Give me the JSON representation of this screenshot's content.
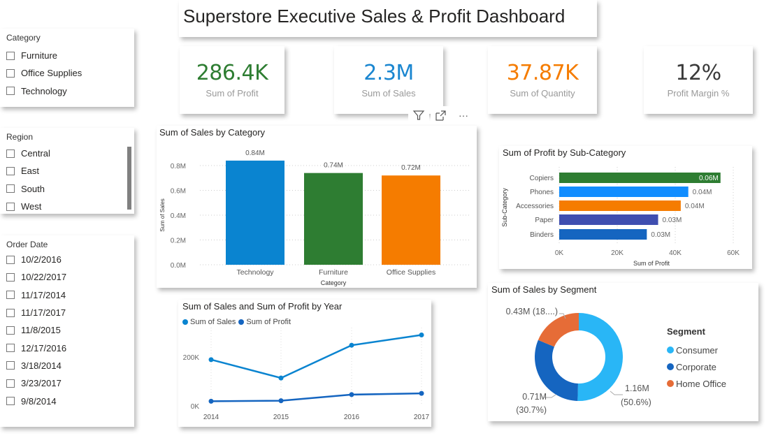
{
  "title": "Superstore Executive Sales & Profit Dashboard",
  "slicers": {
    "category": {
      "title": "Category",
      "items": [
        "Furniture",
        "Office Supplies",
        "Technology"
      ]
    },
    "region": {
      "title": "Region",
      "items": [
        "Central",
        "East",
        "South",
        "West"
      ]
    },
    "order_date": {
      "title": "Order Date",
      "items": [
        "10/2/2016",
        "10/22/2017",
        "11/17/2014",
        "11/17/2017",
        "11/8/2015",
        "12/17/2016",
        "3/18/2014",
        "3/23/2017",
        "9/8/2014"
      ]
    }
  },
  "kpis": [
    {
      "value": "286.4K",
      "label": "Sum of Profit",
      "color": "#2e7d32"
    },
    {
      "value": "2.3M",
      "label": "Sum of Sales",
      "color": "#1a86d0"
    },
    {
      "value": "37.87K",
      "label": "Sum of Quantity",
      "color": "#f57c00"
    },
    {
      "value": "12%",
      "label": "Profit Margin %",
      "color": "#3a3a3a"
    }
  ],
  "visual_header": {
    "filter_icon": "filter-icon",
    "focus_icon": "focus-mode-icon",
    "more_icon": "more-options-icon",
    "more_label": "···"
  },
  "chart_data": [
    {
      "type": "bar",
      "title": "Sum of Sales by Category",
      "categories": [
        "Technology",
        "Furniture",
        "Office Supplies"
      ],
      "values": [
        0.84,
        0.74,
        0.72
      ],
      "data_labels": [
        "0.84M",
        "0.74M",
        "0.72M"
      ],
      "colors": [
        "#0a84d0",
        "#2e7d32",
        "#f57c00"
      ],
      "xlabel": "Category",
      "ylabel": "Sum of Sales",
      "yticks": [
        "0.0M",
        "0.2M",
        "0.4M",
        "0.6M",
        "0.8M"
      ],
      "ytick_values": [
        0,
        0.2,
        0.4,
        0.6,
        0.8
      ],
      "ylim": [
        0,
        0.9
      ],
      "grid": true
    },
    {
      "type": "bar",
      "orientation": "horizontal",
      "title": "Sum of Profit by Sub-Category",
      "categories": [
        "Copiers",
        "Phones",
        "Accessories",
        "Paper",
        "Binders"
      ],
      "values": [
        55.6,
        44.5,
        41.9,
        34.1,
        30.2
      ],
      "data_labels": [
        "0.06M",
        "0.04M",
        "0.04M",
        "0.03M",
        "0.03M"
      ],
      "colors": [
        "#2e7d32",
        "#118dff",
        "#f57c00",
        "#3f4eb0",
        "#1565c0"
      ],
      "xlabel": "Sum of Profit",
      "ylabel": "Sub-Category",
      "xticks": [
        "0K",
        "20K",
        "40K",
        "60K"
      ],
      "xtick_values": [
        0,
        20,
        40,
        60
      ],
      "xlim": [
        0,
        60
      ],
      "grid": true
    },
    {
      "type": "line",
      "title": "Sum of Sales and Sum of Profit by Year",
      "x": [
        "2014",
        "2015",
        "2016",
        "2017"
      ],
      "series": [
        {
          "name": "Sum of Sales",
          "values": [
            189,
            114,
            248,
            290
          ],
          "color": "#0a84d0"
        },
        {
          "name": "Sum of Profit",
          "values": [
            19,
            21,
            46,
            51
          ],
          "color": "#1565c0"
        }
      ],
      "yticks": [
        "0K",
        "200K"
      ],
      "ytick_values": [
        0,
        200
      ],
      "ylim": [
        0,
        300
      ],
      "legend": "top-left",
      "grid": true
    },
    {
      "type": "pie",
      "donut": true,
      "title": "Sum of Sales by Segment",
      "legend_title": "Segment",
      "categories": [
        "Consumer",
        "Corporate",
        "Home Office"
      ],
      "values": [
        1.16,
        0.71,
        0.43
      ],
      "percents": [
        50.6,
        30.7,
        18.7
      ],
      "colors": [
        "#29b6f6",
        "#1565c0",
        "#e66c37"
      ],
      "data_labels": [
        "1.16M",
        "(50.6%)",
        "0.71M",
        "(30.7%)",
        "0.43M (18....)"
      ],
      "legend": "right"
    }
  ]
}
